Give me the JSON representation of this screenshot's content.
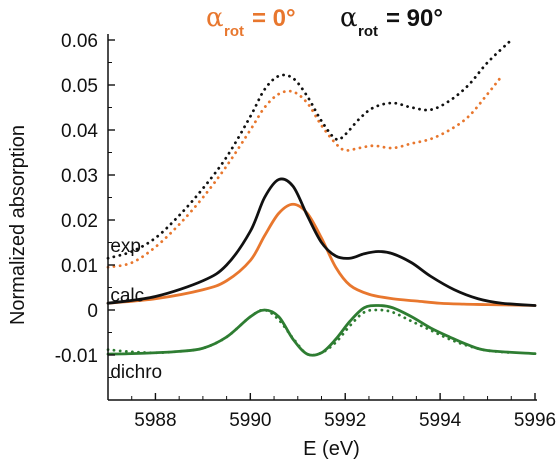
{
  "chart_data": {
    "type": "line",
    "xlabel": "E (eV)",
    "ylabel": "Normalized absorption",
    "xlim": [
      5987,
      5996
    ],
    "ylim": [
      -0.02,
      0.06
    ],
    "x_ticks": [
      5988,
      5990,
      5992,
      5994,
      5996
    ],
    "y_ticks": [
      -0.01,
      0,
      0.01,
      0.02,
      0.03,
      0.04,
      0.05,
      0.06
    ],
    "y_tick_labels": [
      "-0.01",
      "0",
      "0.01",
      "0.02",
      "0.03",
      "0.04",
      "0.05",
      "0.06"
    ],
    "grid": false,
    "legend": {
      "placement": "top",
      "entries": [
        {
          "symbol": "α",
          "sub": "rot",
          "value": "= 0°",
          "color": "#e8772e"
        },
        {
          "symbol": "α",
          "sub": "rot",
          "value": "= 90°",
          "color": "#111111"
        }
      ]
    },
    "annotations": [
      {
        "text": "exp",
        "x": 5987.05,
        "y": 0.0145
      },
      {
        "text": "calc",
        "x": 5987.05,
        "y": 0.0035
      },
      {
        "text": "dichro",
        "x": 5987.05,
        "y": -0.0135
      }
    ],
    "series": [
      {
        "group": "exp",
        "rot": "0°",
        "style": "dotted",
        "color": "#e8772e",
        "x": [
          5987,
          5987.5,
          5988,
          5988.5,
          5989,
          5989.5,
          5990,
          5990.3,
          5990.6,
          5990.9,
          5991.2,
          5991.5,
          5991.8,
          5992,
          5992.3,
          5992.6,
          5993,
          5993.4,
          5993.8,
          5994.2,
          5994.6,
          5995,
          5995.3
        ],
        "y": [
          0.0095,
          0.0105,
          0.014,
          0.019,
          0.025,
          0.032,
          0.04,
          0.045,
          0.048,
          0.0485,
          0.046,
          0.041,
          0.037,
          0.0355,
          0.036,
          0.0365,
          0.036,
          0.037,
          0.038,
          0.04,
          0.043,
          0.048,
          0.052
        ]
      },
      {
        "group": "exp",
        "rot": "90°",
        "style": "dotted",
        "color": "#111111",
        "x": [
          5987,
          5987.5,
          5988,
          5988.5,
          5989,
          5989.5,
          5990,
          5990.3,
          5990.6,
          5990.9,
          5991.2,
          5991.5,
          5991.8,
          5992,
          5992.3,
          5992.6,
          5993,
          5993.4,
          5993.8,
          5994.2,
          5994.6,
          5995,
          5995.5
        ],
        "y": [
          0.0115,
          0.013,
          0.016,
          0.021,
          0.027,
          0.034,
          0.043,
          0.049,
          0.052,
          0.0515,
          0.0475,
          0.042,
          0.038,
          0.039,
          0.0425,
          0.045,
          0.046,
          0.045,
          0.0445,
          0.0465,
          0.05,
          0.055,
          0.06
        ]
      },
      {
        "group": "calc",
        "rot": "0°",
        "style": "solid",
        "color": "#e8772e",
        "x": [
          5987,
          5988,
          5989,
          5989.5,
          5990,
          5990.3,
          5990.6,
          5990.9,
          5991.2,
          5991.5,
          5991.8,
          5992.1,
          5992.5,
          5993,
          5993.5,
          5994,
          5994.5,
          5995,
          5996
        ],
        "y": [
          0.0015,
          0.0025,
          0.0045,
          0.0065,
          0.011,
          0.0165,
          0.0215,
          0.0235,
          0.0215,
          0.016,
          0.0095,
          0.0055,
          0.0035,
          0.0025,
          0.002,
          0.0015,
          0.0013,
          0.0012,
          0.001
        ]
      },
      {
        "group": "calc",
        "rot": "90°",
        "style": "solid",
        "color": "#111111",
        "x": [
          5987,
          5988,
          5989,
          5989.5,
          5990,
          5990.3,
          5990.6,
          5990.9,
          5991.2,
          5991.5,
          5991.8,
          5992.1,
          5992.4,
          5992.7,
          5993,
          5993.4,
          5993.8,
          5994.3,
          5994.8,
          5995.3,
          5996
        ],
        "y": [
          0.0015,
          0.003,
          0.0065,
          0.01,
          0.0175,
          0.025,
          0.029,
          0.0275,
          0.021,
          0.015,
          0.012,
          0.0115,
          0.0125,
          0.013,
          0.0125,
          0.0105,
          0.0075,
          0.0045,
          0.0025,
          0.0015,
          0.001
        ]
      },
      {
        "group": "dichro",
        "rot": "exp",
        "style": "dotted",
        "color": "#2e7d32",
        "x": [
          5987,
          5987.5,
          5988,
          5988.5,
          5989,
          5989.5,
          5990,
          5990.3,
          5990.6,
          5990.9,
          5991.2,
          5991.5,
          5991.8,
          5992.1,
          5992.4,
          5992.7,
          5993,
          5993.4,
          5993.8,
          5994.2,
          5994.6,
          5995,
          5995.5
        ],
        "y": [
          -0.0088,
          -0.0093,
          -0.0095,
          -0.0092,
          -0.0085,
          -0.006,
          -0.0015,
          0.0,
          -0.0022,
          -0.0063,
          -0.0098,
          -0.0095,
          -0.0072,
          -0.0035,
          -0.0005,
          0.0,
          -0.0005,
          -0.0025,
          -0.0045,
          -0.0065,
          -0.008,
          -0.009,
          -0.0095
        ]
      },
      {
        "group": "dichro",
        "rot": "calc",
        "style": "solid",
        "color": "#2e7d32",
        "x": [
          5987,
          5987.5,
          5988,
          5988.5,
          5989,
          5989.5,
          5990,
          5990.3,
          5990.6,
          5990.9,
          5991.2,
          5991.5,
          5991.8,
          5992.1,
          5992.4,
          5992.7,
          5993,
          5993.4,
          5993.8,
          5994.2,
          5994.6,
          5995,
          5996
        ],
        "y": [
          -0.0098,
          -0.0097,
          -0.0095,
          -0.0092,
          -0.0085,
          -0.006,
          -0.0015,
          0.0,
          -0.0015,
          -0.0065,
          -0.0098,
          -0.0095,
          -0.0065,
          -0.0025,
          0.0005,
          0.001,
          0.0005,
          -0.0015,
          -0.004,
          -0.006,
          -0.0078,
          -0.009,
          -0.0097
        ]
      }
    ]
  }
}
